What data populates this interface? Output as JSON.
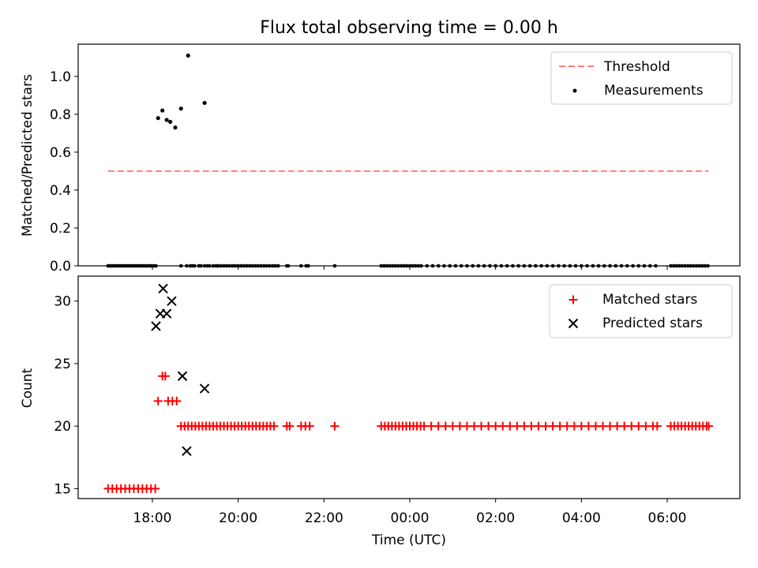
{
  "chart_data": [
    {
      "type": "scatter",
      "title": "Flux total observing time = 0.00 h",
      "xlabel": "",
      "ylabel": "Matched/Predicted stars",
      "ylim": [
        0,
        1.17
      ],
      "yticks": [
        "0.0",
        "0.2",
        "0.4",
        "0.6",
        "0.8",
        "1.0"
      ],
      "grid": false,
      "legend_position": "top-right",
      "threshold": {
        "name": "Threshold",
        "color": "#ff7f7f",
        "style": "dashed",
        "y": 0.5,
        "x_start": "16:58",
        "x_end": "06:58"
      },
      "series": [
        {
          "name": "Measurements",
          "color": "#000000",
          "marker": "dot",
          "points": [
            [
              "18:08",
              0.78
            ],
            [
              "18:14",
              0.82
            ],
            [
              "18:20",
              0.77
            ],
            [
              "18:25",
              0.76
            ],
            [
              "18:32",
              0.73
            ],
            [
              "18:40",
              0.83
            ],
            [
              "18:50",
              1.11
            ],
            [
              "19:13",
              0.86
            ]
          ],
          "zero_x": [
            "16:58",
            "17:00",
            "17:02",
            "17:05",
            "17:08",
            "17:11",
            "17:14",
            "17:17",
            "17:20",
            "17:23",
            "17:26",
            "17:29",
            "17:32",
            "17:35",
            "17:38",
            "17:41",
            "17:44",
            "17:47",
            "17:50",
            "17:53",
            "17:56",
            "17:59",
            "18:02",
            "18:05",
            "18:40",
            "18:48",
            "18:53",
            "18:56",
            "18:59",
            "19:05",
            "19:08",
            "19:13",
            "19:17",
            "19:20",
            "19:25",
            "19:29",
            "19:32",
            "19:36",
            "19:40",
            "19:44",
            "19:48",
            "19:52",
            "19:56",
            "20:00",
            "20:04",
            "20:08",
            "20:12",
            "20:16",
            "20:20",
            "20:24",
            "20:28",
            "20:32",
            "20:36",
            "20:40",
            "20:44",
            "20:48",
            "20:52",
            "20:56",
            "21:08",
            "21:10",
            "21:28",
            "21:35",
            "21:38",
            "22:15",
            "23:20",
            "23:24",
            "23:28",
            "23:32",
            "23:36",
            "23:40",
            "23:44",
            "23:48",
            "23:52",
            "23:56",
            "00:00",
            "00:04",
            "00:08",
            "00:12",
            "00:16",
            "00:24",
            "00:32",
            "00:40",
            "00:48",
            "00:56",
            "01:04",
            "01:12",
            "01:20",
            "01:28",
            "01:36",
            "01:44",
            "01:52",
            "02:00",
            "02:08",
            "02:16",
            "02:24",
            "02:32",
            "02:40",
            "02:48",
            "02:56",
            "03:04",
            "03:12",
            "03:20",
            "03:28",
            "03:36",
            "03:44",
            "03:52",
            "04:00",
            "04:08",
            "04:16",
            "04:24",
            "04:32",
            "04:40",
            "04:48",
            "04:56",
            "05:04",
            "05:12",
            "05:20",
            "05:28",
            "05:36",
            "05:44",
            "06:05",
            "06:09",
            "06:13",
            "06:17",
            "06:21",
            "06:25",
            "06:29",
            "06:33",
            "06:37",
            "06:41",
            "06:45",
            "06:49",
            "06:53",
            "06:57"
          ]
        }
      ]
    },
    {
      "type": "scatter",
      "title": "",
      "xlabel": "Time (UTC)",
      "ylabel": "Count",
      "ylim": [
        14.2,
        32.0
      ],
      "yticks": [
        "15",
        "20",
        "25",
        "30"
      ],
      "xticks": [
        "18:00",
        "20:00",
        "22:00",
        "00:00",
        "02:00",
        "04:00",
        "06:00"
      ],
      "grid": false,
      "legend_position": "top-right",
      "series": [
        {
          "name": "Matched stars",
          "color": "#ff0000",
          "marker": "plus",
          "groups": [
            {
              "y": 15,
              "x": [
                "16:58",
                "17:04",
                "17:10",
                "17:16",
                "17:22",
                "17:28",
                "17:34",
                "17:40",
                "17:46",
                "17:52",
                "17:58",
                "18:04"
              ]
            },
            {
              "y": 22,
              "x": [
                "18:08",
                "18:22",
                "18:28",
                "18:34"
              ]
            },
            {
              "y": 24,
              "x": [
                "18:14",
                "18:18"
              ]
            },
            {
              "y": 20,
              "x": [
                "18:40",
                "18:45",
                "18:50",
                "18:55",
                "19:00",
                "19:05",
                "19:10",
                "19:15",
                "19:20",
                "19:25",
                "19:30",
                "19:35",
                "19:40",
                "19:45",
                "19:50",
                "19:55",
                "20:00",
                "20:05",
                "20:10",
                "20:15",
                "20:20",
                "20:25",
                "20:30",
                "20:35",
                "20:40",
                "20:45",
                "20:50",
                "21:08",
                "21:12",
                "21:28",
                "21:34",
                "21:40",
                "22:15",
                "23:20",
                "23:25",
                "23:30",
                "23:35",
                "23:40",
                "23:45",
                "23:50",
                "23:55",
                "00:00",
                "00:05",
                "00:10",
                "00:15",
                "00:20",
                "00:30",
                "00:40",
                "00:50",
                "01:00",
                "01:10",
                "01:20",
                "01:30",
                "01:40",
                "01:50",
                "02:00",
                "02:10",
                "02:20",
                "02:30",
                "02:40",
                "02:50",
                "03:00",
                "03:10",
                "03:20",
                "03:30",
                "03:40",
                "03:50",
                "04:00",
                "04:10",
                "04:20",
                "04:30",
                "04:40",
                "04:50",
                "05:00",
                "05:10",
                "05:20",
                "05:30",
                "05:40",
                "05:46",
                "06:05",
                "06:10",
                "06:15",
                "06:20",
                "06:25",
                "06:30",
                "06:35",
                "06:40",
                "06:45",
                "06:50",
                "06:55",
                "06:58"
              ]
            }
          ]
        },
        {
          "name": "Predicted stars",
          "color": "#000000",
          "marker": "x",
          "points": [
            [
              "18:05",
              28
            ],
            [
              "18:11",
              29
            ],
            [
              "18:15",
              31
            ],
            [
              "18:20",
              29
            ],
            [
              "18:27",
              30
            ],
            [
              "18:42",
              24
            ],
            [
              "18:48",
              18
            ],
            [
              "19:13",
              23
            ]
          ]
        }
      ]
    }
  ]
}
